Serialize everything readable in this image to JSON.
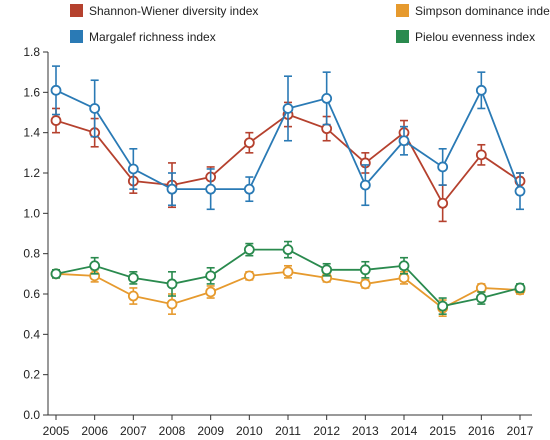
{
  "chart_data": {
    "type": "line",
    "title": "",
    "xlabel": "",
    "ylabel": "",
    "x": [
      "2005",
      "2006",
      "2007",
      "2008",
      "2009",
      "2010",
      "2011",
      "2012",
      "2013",
      "2014",
      "2015",
      "2016",
      "2017"
    ],
    "ylim": [
      0,
      1.8
    ],
    "yticks": [
      "0.0",
      "0.2",
      "0.4",
      "0.6",
      "0.8",
      "1.0",
      "1.2",
      "1.4",
      "1.6",
      "1.8"
    ],
    "grid": false,
    "legend": "top",
    "series": [
      {
        "name": "Shannon-Wiener diversity index",
        "color": "#b5412e",
        "values": [
          1.46,
          1.4,
          1.16,
          1.14,
          1.18,
          1.35,
          1.49,
          1.42,
          1.25,
          1.4,
          1.05,
          1.29,
          1.16
        ],
        "errors": [
          0.06,
          0.07,
          0.06,
          0.11,
          0.05,
          0.05,
          0.06,
          0.06,
          0.05,
          0.06,
          0.09,
          0.05,
          0.04
        ]
      },
      {
        "name": "Margalef richness index",
        "color": "#2a7ab5",
        "values": [
          1.61,
          1.52,
          1.22,
          1.12,
          1.12,
          1.12,
          1.52,
          1.57,
          1.14,
          1.36,
          1.23,
          1.61,
          1.11
        ],
        "errors": [
          0.12,
          0.14,
          0.1,
          0.08,
          0.1,
          0.06,
          0.16,
          0.13,
          0.1,
          0.07,
          0.09,
          0.09,
          0.09
        ]
      },
      {
        "name": "Simpson dominance index",
        "color": "#e69a2e",
        "values": [
          0.7,
          0.69,
          0.59,
          0.55,
          0.61,
          0.69,
          0.71,
          0.68,
          0.65,
          0.68,
          0.53,
          0.63,
          0.62
        ],
        "errors": [
          0.02,
          0.03,
          0.04,
          0.05,
          0.03,
          0.02,
          0.03,
          0.02,
          0.02,
          0.03,
          0.04,
          0.02,
          0.02
        ]
      },
      {
        "name": "Pielou evenness index",
        "color": "#2a8a4e",
        "values": [
          0.7,
          0.74,
          0.68,
          0.65,
          0.69,
          0.82,
          0.82,
          0.72,
          0.72,
          0.74,
          0.54,
          0.58,
          0.63
        ],
        "errors": [
          0.02,
          0.04,
          0.03,
          0.06,
          0.04,
          0.03,
          0.04,
          0.03,
          0.04,
          0.04,
          0.04,
          0.03,
          0.02
        ]
      }
    ]
  }
}
